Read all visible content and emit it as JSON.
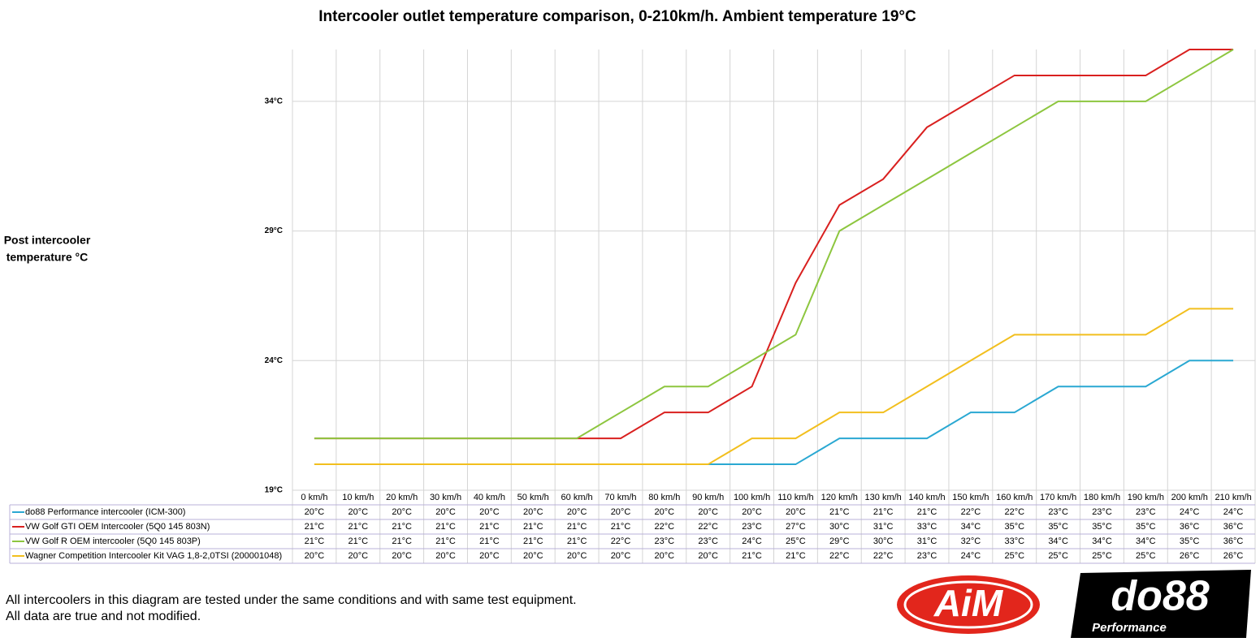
{
  "chart_data": {
    "type": "line",
    "title": "Intercooler outlet temperature comparison, 0-210km/h. Ambient temperature 19°C",
    "y_label": [
      "Post intercooler",
      "temperature °C"
    ],
    "categories": [
      "0 km/h",
      "10 km/h",
      "20 km/h",
      "30 km/h",
      "40 km/h",
      "50 km/h",
      "60 km/h",
      "70 km/h",
      "80 km/h",
      "90 km/h",
      "100 km/h",
      "110 km/h",
      "120 km/h",
      "130 km/h",
      "140 km/h",
      "150 km/h",
      "160 km/h",
      "170 km/h",
      "180 km/h",
      "190 km/h",
      "200 km/h",
      "210 km/h"
    ],
    "ylim": [
      19,
      36
    ],
    "yticks": [
      {
        "value": 19,
        "label": "19°C"
      },
      {
        "value": 24,
        "label": "24°C"
      },
      {
        "value": 29,
        "label": "29°C"
      },
      {
        "value": 34,
        "label": "34°C"
      }
    ],
    "grid": true,
    "series": [
      {
        "name": "do88 Performance intercooler (ICM-300)",
        "color": "#2aa8d2",
        "values": [
          20,
          20,
          20,
          20,
          20,
          20,
          20,
          20,
          20,
          20,
          20,
          20,
          21,
          21,
          21,
          22,
          22,
          23,
          23,
          23,
          24,
          24
        ],
        "value_labels": [
          "20°C",
          "20°C",
          "20°C",
          "20°C",
          "20°C",
          "20°C",
          "20°C",
          "20°C",
          "20°C",
          "20°C",
          "20°C",
          "20°C",
          "21°C",
          "21°C",
          "21°C",
          "22°C",
          "22°C",
          "23°C",
          "23°C",
          "23°C",
          "24°C",
          "24°C"
        ]
      },
      {
        "name": "VW Golf GTI OEM Intercooler (5Q0 145 803N)",
        "color": "#d9201f",
        "values": [
          21,
          21,
          21,
          21,
          21,
          21,
          21,
          21,
          22,
          22,
          23,
          27,
          30,
          31,
          33,
          34,
          35,
          35,
          35,
          35,
          36,
          36
        ],
        "value_labels": [
          "21°C",
          "21°C",
          "21°C",
          "21°C",
          "21°C",
          "21°C",
          "21°C",
          "21°C",
          "22°C",
          "22°C",
          "23°C",
          "27°C",
          "30°C",
          "31°C",
          "33°C",
          "34°C",
          "35°C",
          "35°C",
          "35°C",
          "35°C",
          "36°C",
          "36°C"
        ]
      },
      {
        "name": "VW Golf R OEM intercooler (5Q0 145 803P)",
        "color": "#8dc63f",
        "values": [
          21,
          21,
          21,
          21,
          21,
          21,
          21,
          22,
          23,
          23,
          24,
          25,
          29,
          30,
          31,
          32,
          33,
          34,
          34,
          34,
          35,
          36
        ],
        "value_labels": [
          "21°C",
          "21°C",
          "21°C",
          "21°C",
          "21°C",
          "21°C",
          "21°C",
          "22°C",
          "23°C",
          "23°C",
          "24°C",
          "25°C",
          "29°C",
          "30°C",
          "31°C",
          "32°C",
          "33°C",
          "34°C",
          "34°C",
          "34°C",
          "35°C",
          "36°C"
        ]
      },
      {
        "name": "Wagner Competition Intercooler Kit VAG 1,8-2,0TSI (200001048)",
        "color": "#f2bf1e",
        "values": [
          20,
          20,
          20,
          20,
          20,
          20,
          20,
          20,
          20,
          20,
          21,
          21,
          22,
          22,
          23,
          24,
          25,
          25,
          25,
          25,
          26,
          26
        ],
        "value_labels": [
          "20°C",
          "20°C",
          "20°C",
          "20°C",
          "20°C",
          "20°C",
          "20°C",
          "20°C",
          "20°C",
          "20°C",
          "21°C",
          "21°C",
          "22°C",
          "22°C",
          "23°C",
          "24°C",
          "25°C",
          "25°C",
          "25°C",
          "25°C",
          "26°C",
          "26°C"
        ]
      }
    ]
  },
  "footer": {
    "notes": [
      "All intercoolers in this diagram are tested under the same conditions and with same test equipment.",
      "All data are true and not modified."
    ],
    "logos": [
      "AiM",
      "do88",
      "Performance"
    ]
  }
}
